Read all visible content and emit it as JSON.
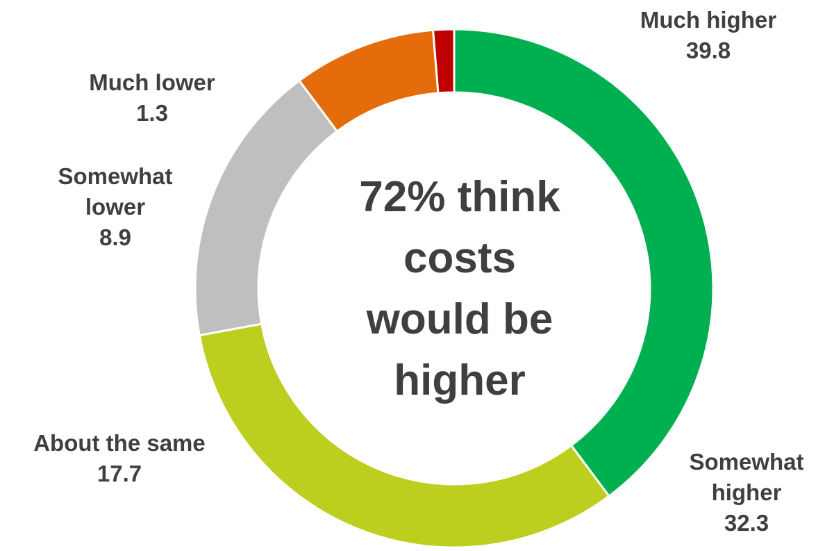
{
  "chart_data": {
    "type": "pie",
    "variant": "donut",
    "start": "top",
    "direction": "clockwise",
    "center_text": [
      "72% think",
      "costs",
      "would be",
      "higher"
    ],
    "slices": [
      {
        "label": [
          "Much higher"
        ],
        "value": 39.8,
        "value_text": "39.8",
        "color": "#00b050"
      },
      {
        "label": [
          "Somewhat",
          "higher"
        ],
        "value": 32.3,
        "value_text": "32.3",
        "color": "#bcce1e"
      },
      {
        "label": [
          "About the same"
        ],
        "value": 17.7,
        "value_text": "17.7",
        "color": "#bfbfbf"
      },
      {
        "label": [
          "Somewhat",
          "lower"
        ],
        "value": 8.9,
        "value_text": "8.9",
        "color": "#e46c0a"
      },
      {
        "label": [
          "Much lower"
        ],
        "value": 1.3,
        "value_text": "1.3",
        "color": "#c00000"
      }
    ]
  }
}
